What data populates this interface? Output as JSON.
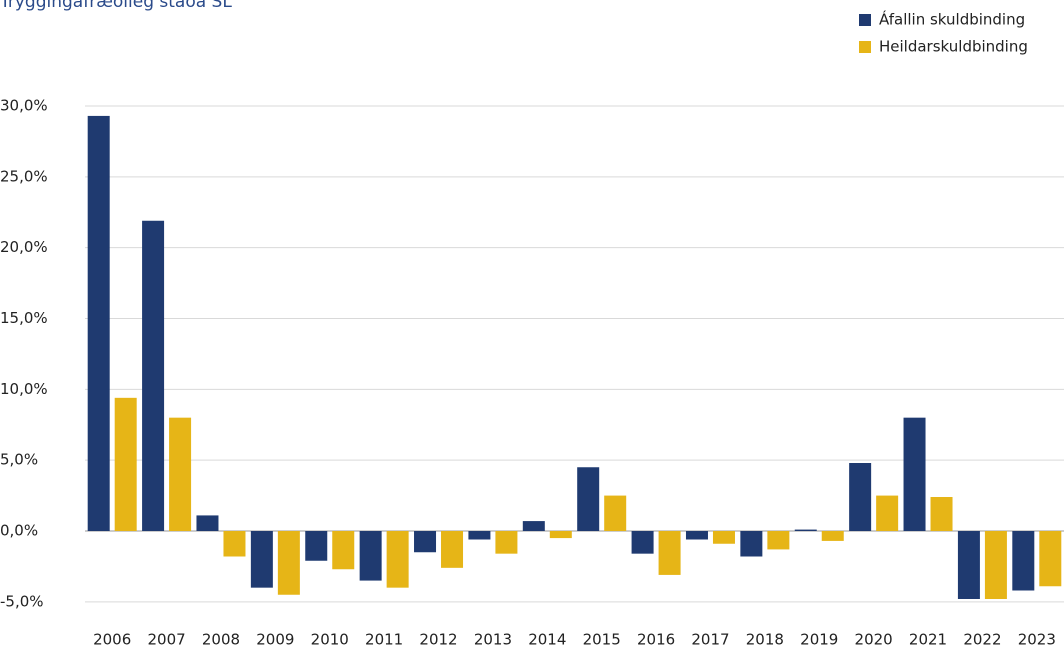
{
  "chart_data": {
    "type": "bar",
    "title": "Tryggingafræðileg staða SL",
    "categories": [
      "2006",
      "2007",
      "2008",
      "2009",
      "2010",
      "2011",
      "2012",
      "2013",
      "2014",
      "2015",
      "2016",
      "2017",
      "2018",
      "2019",
      "2020",
      "2021",
      "2022",
      "2023"
    ],
    "series": [
      {
        "name": "Áfallin skuldbinding",
        "color": "#1f3a70",
        "values": [
          29.3,
          21.9,
          1.1,
          -4.0,
          -2.1,
          -3.5,
          -1.5,
          -0.6,
          0.7,
          4.5,
          -1.6,
          -0.6,
          -1.8,
          0.1,
          4.8,
          8.0,
          -4.8,
          -4.2
        ]
      },
      {
        "name": "Heildarskuldbinding",
        "color": "#e6b517",
        "values": [
          9.4,
          8.0,
          -1.8,
          -4.5,
          -2.7,
          -4.0,
          -2.6,
          -1.6,
          -0.5,
          2.5,
          -3.1,
          -0.9,
          -1.3,
          -0.7,
          2.5,
          2.4,
          -4.8,
          -3.9
        ]
      }
    ],
    "ylim": [
      -6,
      30
    ],
    "yticks": [
      {
        "value": -5,
        "label": "-5,0%"
      },
      {
        "value": 0,
        "label": "0,0%"
      },
      {
        "value": 5,
        "label": "5,0%"
      },
      {
        "value": 10,
        "label": "10,0%"
      },
      {
        "value": 15,
        "label": "15,0%"
      },
      {
        "value": 20,
        "label": "20,0%"
      },
      {
        "value": 25,
        "label": "25,0%"
      },
      {
        "value": 30,
        "label": "30,0%"
      }
    ],
    "grid": true,
    "legend": "top-right"
  }
}
